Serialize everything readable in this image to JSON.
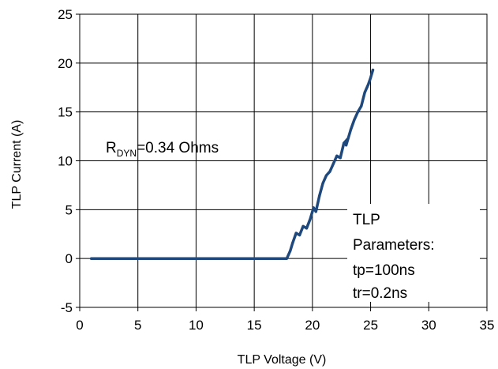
{
  "chart_data": {
    "type": "line",
    "xlabel": "TLP Voltage (V)",
    "ylabel": "TLP Current (A)",
    "xlim": [
      0,
      35
    ],
    "ylim": [
      -5,
      25
    ],
    "xticks": [
      "0",
      "5",
      "10",
      "15",
      "20",
      "25",
      "30",
      "35"
    ],
    "yticks": [
      "-5",
      "0",
      "5",
      "10",
      "15",
      "20",
      "25"
    ],
    "grid": true,
    "series": [
      {
        "color": "#1f497d",
        "x": [
          1.0,
          17.8,
          18.1,
          18.3,
          18.6,
          18.9,
          19.2,
          19.5,
          19.8,
          20.1,
          20.3,
          20.6,
          20.9,
          21.2,
          21.5,
          21.8,
          22.1,
          22.4,
          22.7,
          23.0,
          22.9,
          23.3,
          23.6,
          23.9,
          24.2,
          24.5,
          24.8,
          25.0,
          25.2
        ],
        "y": [
          0.0,
          0.0,
          0.8,
          1.6,
          2.6,
          2.4,
          3.3,
          3.1,
          4.0,
          5.2,
          4.8,
          6.4,
          7.7,
          8.5,
          8.9,
          9.7,
          10.5,
          10.3,
          11.8,
          12.2,
          11.6,
          13.2,
          14.2,
          15.0,
          15.6,
          17.0,
          17.8,
          18.5,
          19.3
        ]
      }
    ],
    "annotations": {
      "rdyn_main": "R",
      "rdyn_sub": "DYN",
      "rdyn_value": "=0.34 Ohms",
      "params_line1": "TLP",
      "params_line2": "Parameters:",
      "params_line3": "tp=100ns",
      "params_line4": "tr=0.2ns"
    }
  }
}
